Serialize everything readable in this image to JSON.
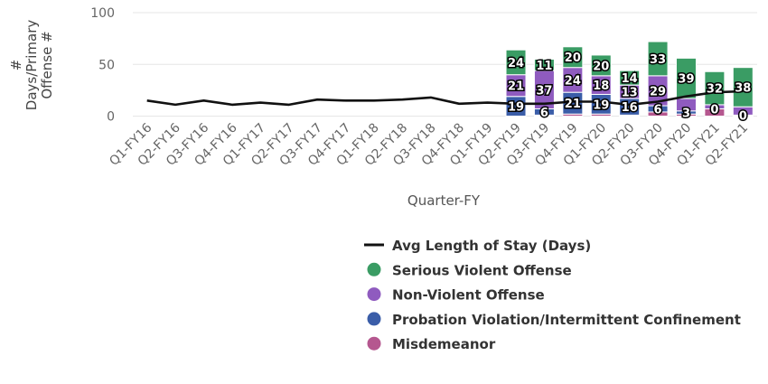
{
  "chart_data": {
    "type": "bar",
    "xlabel": "Quarter-FY",
    "ylabel_lines": [
      "#",
      "Days/Primary",
      "Offense #"
    ],
    "ylim": [
      0,
      100
    ],
    "yticks": [
      0,
      50,
      100
    ],
    "grid": true,
    "legend_position": "bottom-right",
    "categories": [
      "Q1-FY16",
      "Q2-FY16",
      "Q3-FY16",
      "Q4-FY16",
      "Q1-FY17",
      "Q2-FY17",
      "Q3-FY17",
      "Q4-FY17",
      "Q1-FY18",
      "Q2-FY18",
      "Q3-FY18",
      "Q4-FY18",
      "Q1-FY19",
      "Q2-FY19",
      "Q3-FY19",
      "Q4-FY19",
      "Q1-FY20",
      "Q2-FY20",
      "Q3-FY20",
      "Q4-FY20",
      "Q1-FY21",
      "Q2-FY21"
    ],
    "series": [
      {
        "name": "Misdemeanor",
        "kind": "bar",
        "color": "#b5578f",
        "values": [
          null,
          null,
          null,
          null,
          null,
          null,
          null,
          null,
          null,
          null,
          null,
          null,
          null,
          0,
          1,
          2,
          2,
          1,
          4,
          2,
          7,
          1
        ]
      },
      {
        "name": "Probation Violation/Intermittent Confinement",
        "kind": "bar",
        "color": "#3a5da8",
        "values": [
          null,
          null,
          null,
          null,
          null,
          null,
          null,
          null,
          null,
          null,
          null,
          null,
          null,
          19,
          6,
          21,
          19,
          16,
          6,
          3,
          0,
          0
        ],
        "labels": [
          null,
          null,
          null,
          null,
          null,
          null,
          null,
          null,
          null,
          null,
          null,
          null,
          null,
          "19",
          "6",
          "21",
          "19",
          "16",
          "6",
          "3",
          "0",
          "0"
        ]
      },
      {
        "name": "Non-Violent Offense",
        "kind": "bar",
        "color": "#8f5bbf",
        "values": [
          null,
          null,
          null,
          null,
          null,
          null,
          null,
          null,
          null,
          null,
          null,
          null,
          null,
          21,
          37,
          24,
          18,
          13,
          29,
          12,
          4,
          8
        ],
        "labels": [
          null,
          null,
          null,
          null,
          null,
          null,
          null,
          null,
          null,
          null,
          null,
          null,
          null,
          "21",
          "37",
          "24",
          "18",
          "13",
          "29",
          null,
          null,
          null
        ]
      },
      {
        "name": "Serious Violent Offense",
        "kind": "bar",
        "color": "#3a9c64",
        "values": [
          null,
          null,
          null,
          null,
          null,
          null,
          null,
          null,
          null,
          null,
          null,
          null,
          null,
          24,
          11,
          20,
          20,
          14,
          33,
          39,
          32,
          38
        ],
        "labels": [
          null,
          null,
          null,
          null,
          null,
          null,
          null,
          null,
          null,
          null,
          null,
          null,
          null,
          "24",
          "11",
          "20",
          "20",
          "14",
          "33",
          "39",
          "32",
          "38"
        ]
      },
      {
        "name": "Avg Length of Stay (Days)",
        "kind": "line",
        "color": "#111111",
        "values": [
          15,
          11,
          15,
          11,
          13,
          11,
          16,
          15,
          15,
          16,
          18,
          12,
          13,
          12,
          12,
          14,
          14,
          11,
          14,
          19,
          23,
          24
        ]
      }
    ],
    "legend_order": [
      "Avg Length of Stay (Days)",
      "Serious Violent Offense",
      "Non-Violent Offense",
      "Probation Violation/Intermittent Confinement",
      "Misdemeanor"
    ]
  }
}
